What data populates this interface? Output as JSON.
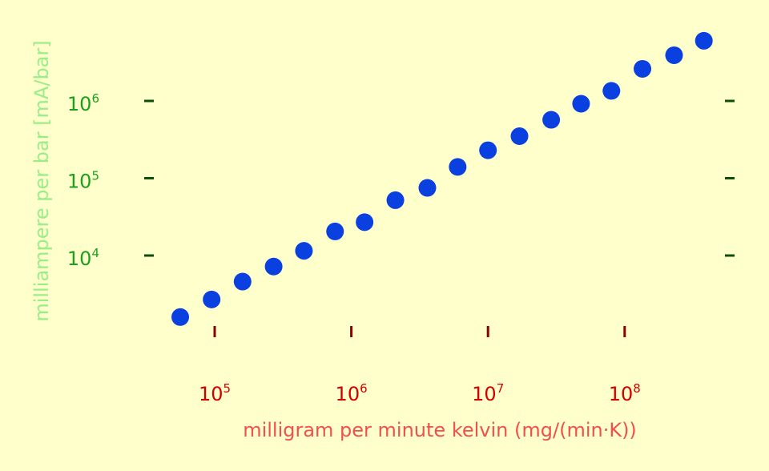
{
  "chart_data": {
    "type": "scatter",
    "xlabel": "milligram per minute kelvin (mg/(min·K))",
    "ylabel": "milliampere per bar [mA/bar]",
    "x_scale": "log",
    "y_scale": "log",
    "x_ticks": [
      {
        "base": "10",
        "exp": "5",
        "value": 100000
      },
      {
        "base": "10",
        "exp": "6",
        "value": 1000000
      },
      {
        "base": "10",
        "exp": "7",
        "value": 10000000
      },
      {
        "base": "10",
        "exp": "8",
        "value": 100000000
      }
    ],
    "y_ticks": [
      {
        "base": "10",
        "exp": "4",
        "value": 10000
      },
      {
        "base": "10",
        "exp": "5",
        "value": 100000
      },
      {
        "base": "10",
        "exp": "6",
        "value": 1000000
      }
    ],
    "grid": false,
    "colors": {
      "background": "#ffffcc",
      "points": "#0a3fe0",
      "x_tick_labels": "#d40000",
      "x_label": "#f05050",
      "x_tick_marks": "#8b0000",
      "y_tick_labels": "#1aa01a",
      "y_label": "#99ee88",
      "y_tick_marks": "#0b4f0b"
    },
    "points": [
      {
        "x": 56000,
        "y": 1600
      },
      {
        "x": 95000,
        "y": 2700
      },
      {
        "x": 160000,
        "y": 4600
      },
      {
        "x": 270000,
        "y": 7200
      },
      {
        "x": 450000,
        "y": 11500
      },
      {
        "x": 760000,
        "y": 20500
      },
      {
        "x": 1250000,
        "y": 27000
      },
      {
        "x": 2100000,
        "y": 52000
      },
      {
        "x": 3600000,
        "y": 75000
      },
      {
        "x": 6000000,
        "y": 140000
      },
      {
        "x": 10000000,
        "y": 230000
      },
      {
        "x": 17000000,
        "y": 350000
      },
      {
        "x": 29000000,
        "y": 570000
      },
      {
        "x": 48000000,
        "y": 920000
      },
      {
        "x": 80000000,
        "y": 1350000
      },
      {
        "x": 135000000,
        "y": 2600000
      },
      {
        "x": 230000000,
        "y": 3900000
      },
      {
        "x": 380000000,
        "y": 6000000
      }
    ]
  }
}
